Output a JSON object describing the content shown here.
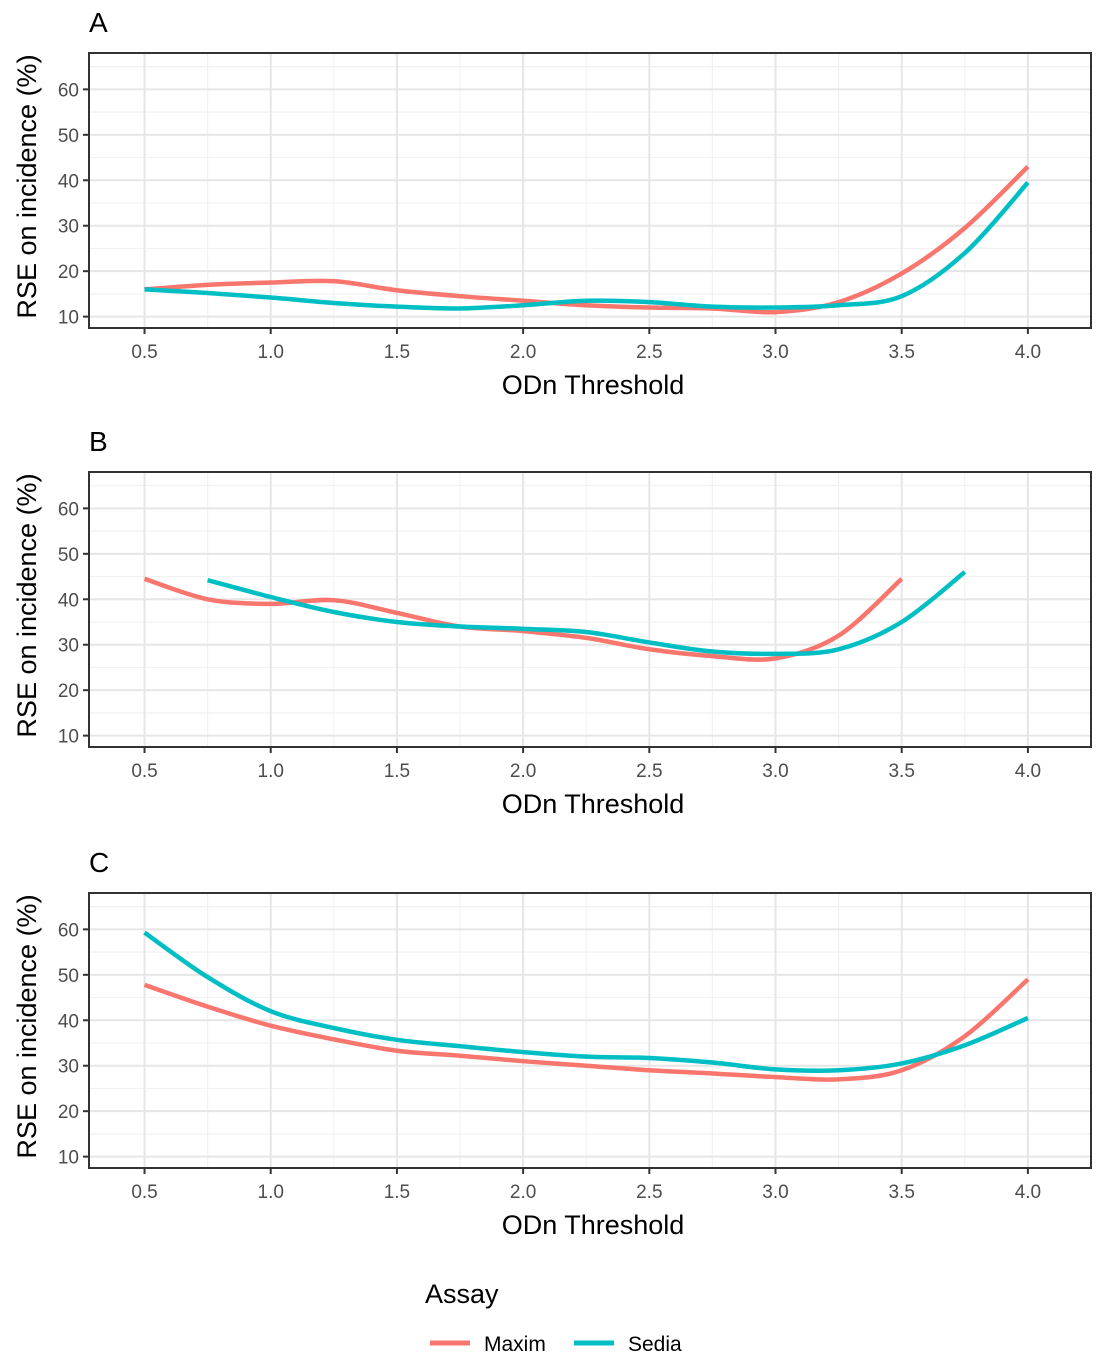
{
  "chart_data": [
    {
      "type": "line",
      "panel": "A",
      "xlabel": "ODn Threshold",
      "ylabel": "RSE on incidence (%)",
      "xlim": [
        0.28,
        4.25
      ],
      "ylim": [
        7.5,
        68
      ],
      "xticks": [
        "0.5",
        "1.0",
        "1.5",
        "2.0",
        "2.5",
        "3.0",
        "3.5",
        "4.0"
      ],
      "yticks": [
        "10",
        "20",
        "30",
        "40",
        "50",
        "60"
      ],
      "grid": true,
      "series": [
        {
          "name": "Maxim",
          "color": "#F8766D",
          "x": [
            0.5,
            0.75,
            1.0,
            1.25,
            1.5,
            1.75,
            2.0,
            2.25,
            2.5,
            2.75,
            3.0,
            3.25,
            3.5,
            3.75,
            4.0
          ],
          "y": [
            16,
            17,
            17.5,
            17.8,
            15.8,
            14.5,
            13.5,
            12.5,
            12,
            11.8,
            11,
            13.2,
            19.5,
            29.5,
            43
          ]
        },
        {
          "name": "Sedia",
          "color": "#00BFC4",
          "x": [
            0.5,
            0.75,
            1.0,
            1.25,
            1.5,
            1.75,
            2.0,
            2.25,
            2.5,
            2.75,
            3.0,
            3.25,
            3.5,
            3.75,
            4.0
          ],
          "y": [
            16,
            15.2,
            14.2,
            13,
            12.2,
            11.8,
            12.5,
            13.5,
            13.2,
            12.2,
            12,
            12.5,
            14.5,
            24,
            39.5
          ]
        }
      ]
    },
    {
      "type": "line",
      "panel": "B",
      "xlabel": "ODn Threshold",
      "ylabel": "RSE on incidence (%)",
      "xlim": [
        0.28,
        4.25
      ],
      "ylim": [
        7.5,
        68
      ],
      "xticks": [
        "0.5",
        "1.0",
        "1.5",
        "2.0",
        "2.5",
        "3.0",
        "3.5",
        "4.0"
      ],
      "yticks": [
        "10",
        "20",
        "30",
        "40",
        "50",
        "60"
      ],
      "grid": true,
      "series": [
        {
          "name": "Maxim",
          "color": "#F8766D",
          "x": [
            0.5,
            0.75,
            1.0,
            1.25,
            1.5,
            1.75,
            2.0,
            2.25,
            2.5,
            2.75,
            3.0,
            3.25,
            3.5
          ],
          "y": [
            44.5,
            40,
            39,
            39.8,
            37,
            34,
            33,
            31.5,
            29,
            27.5,
            27,
            32,
            44.5
          ]
        },
        {
          "name": "Sedia",
          "color": "#00BFC4",
          "x": [
            0.75,
            1.0,
            1.25,
            1.5,
            1.75,
            2.0,
            2.25,
            2.5,
            2.75,
            3.0,
            3.25,
            3.5,
            3.75
          ],
          "y": [
            44.2,
            40.5,
            37.2,
            35,
            34,
            33.5,
            32.8,
            30.5,
            28.5,
            28,
            29,
            35,
            46
          ]
        }
      ]
    },
    {
      "type": "line",
      "panel": "C",
      "xlabel": "ODn Threshold",
      "ylabel": "RSE on incidence (%)",
      "xlim": [
        0.28,
        4.25
      ],
      "ylim": [
        7.5,
        68
      ],
      "xticks": [
        "0.5",
        "1.0",
        "1.5",
        "2.0",
        "2.5",
        "3.0",
        "3.5",
        "4.0"
      ],
      "yticks": [
        "10",
        "20",
        "30",
        "40",
        "50",
        "60"
      ],
      "grid": true,
      "series": [
        {
          "name": "Maxim",
          "color": "#F8766D",
          "x": [
            0.5,
            0.75,
            1.0,
            1.25,
            1.5,
            1.75,
            2.0,
            2.25,
            2.5,
            2.75,
            3.0,
            3.25,
            3.5,
            3.75,
            4.0
          ],
          "y": [
            47.8,
            43,
            38.8,
            35.8,
            33.3,
            32.2,
            31,
            30,
            29,
            28.3,
            27.5,
            27,
            29,
            36.5,
            49
          ]
        },
        {
          "name": "Sedia",
          "color": "#00BFC4",
          "x": [
            0.5,
            0.75,
            1.0,
            1.25,
            1.5,
            1.75,
            2.0,
            2.25,
            2.5,
            2.75,
            3.0,
            3.25,
            3.5,
            3.75,
            4.0
          ],
          "y": [
            59.3,
            49.5,
            42,
            38.3,
            35.7,
            34.3,
            33,
            32,
            31.7,
            30.7,
            29.2,
            29,
            30.5,
            34.5,
            40.5
          ]
        }
      ]
    }
  ],
  "legend": {
    "title": "Assay",
    "position": "bottom",
    "items": [
      {
        "label": "Maxim",
        "color": "#F8766D"
      },
      {
        "label": "Sedia",
        "color": "#00BFC4"
      }
    ]
  }
}
